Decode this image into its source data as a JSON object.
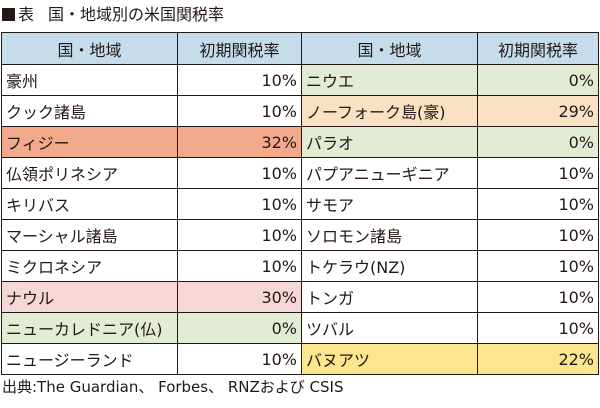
{
  "header": {
    "label": "表",
    "title": "国・地域別の米国関税率"
  },
  "columns": [
    "国・地域",
    "初期関税率",
    "国・地域",
    "初期関税率"
  ],
  "rows": [
    [
      {
        "name": "豪州",
        "rate": "10%",
        "highlight": ""
      },
      {
        "name": "ニウエ",
        "rate": "0%",
        "highlight": "green"
      }
    ],
    [
      {
        "name": "クック諸島",
        "rate": "10%",
        "highlight": ""
      },
      {
        "name": "ノーフォーク島(豪)",
        "rate": "29%",
        "highlight": "peach"
      }
    ],
    [
      {
        "name": "フィジー",
        "rate": "32%",
        "highlight": "salmon"
      },
      {
        "name": "パラオ",
        "rate": "0%",
        "highlight": "green"
      }
    ],
    [
      {
        "name": "仏領ポリネシア",
        "rate": "10%",
        "highlight": ""
      },
      {
        "name": "パプアニューギニア",
        "rate": "10%",
        "highlight": ""
      }
    ],
    [
      {
        "name": "キリバス",
        "rate": "10%",
        "highlight": ""
      },
      {
        "name": "サモア",
        "rate": "10%",
        "highlight": ""
      }
    ],
    [
      {
        "name": "マーシャル諸島",
        "rate": "10%",
        "highlight": ""
      },
      {
        "name": "ソロモン諸島",
        "rate": "10%",
        "highlight": ""
      }
    ],
    [
      {
        "name": "ミクロネシア",
        "rate": "10%",
        "highlight": ""
      },
      {
        "name": "トケラウ(NZ)",
        "rate": "10%",
        "highlight": ""
      }
    ],
    [
      {
        "name": "ナウル",
        "rate": "30%",
        "highlight": "pink"
      },
      {
        "name": "トンガ",
        "rate": "10%",
        "highlight": ""
      }
    ],
    [
      {
        "name": "ニューカレドニア(仏)",
        "rate": "0%",
        "highlight": "green"
      },
      {
        "name": "ツバル",
        "rate": "10%",
        "highlight": ""
      }
    ],
    [
      {
        "name": "ニュージーランド",
        "rate": "10%",
        "highlight": ""
      },
      {
        "name": "バヌアツ",
        "rate": "22%",
        "highlight": "yellow"
      }
    ]
  ],
  "source": "出典:The Guardian、 Forbes、 RNZおよび CSIS",
  "colors": {
    "header": "#c5dcea",
    "salmon": "#f2a98c",
    "pink": "#f7d6d8",
    "green": "#e2ecd5",
    "peach": "#fbe1c4",
    "yellow": "#fbe58e"
  }
}
